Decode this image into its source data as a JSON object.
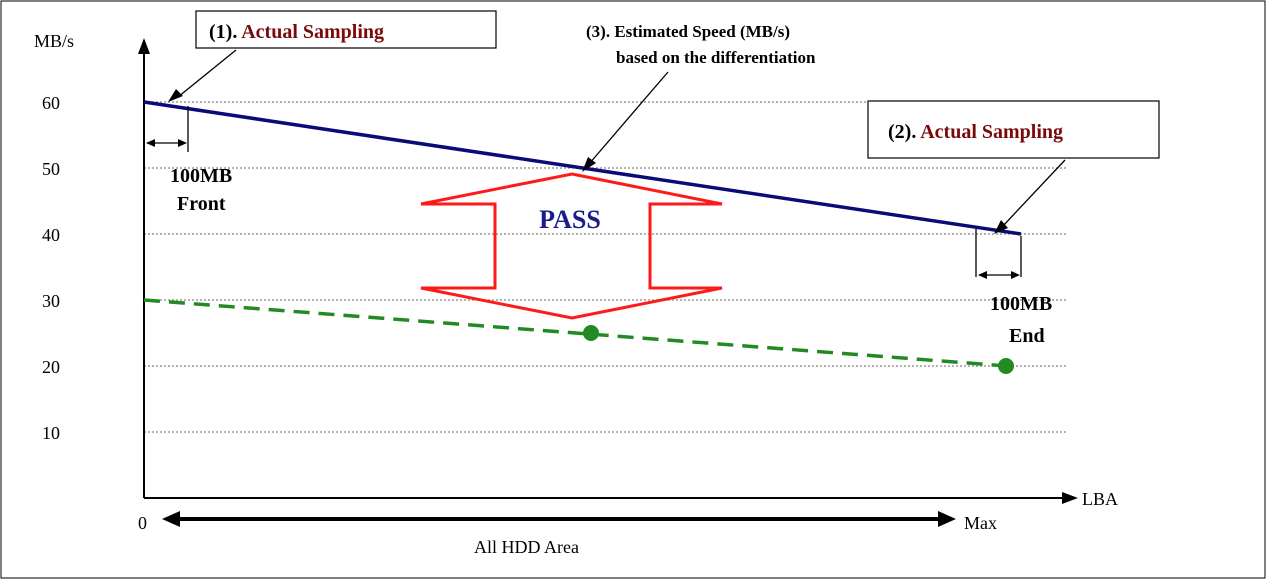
{
  "axes": {
    "y_unit": "MB/s",
    "x_unit": "LBA",
    "x_start": "0",
    "x_end": "Max",
    "y_ticks": [
      "60",
      "50",
      "40",
      "30",
      "20",
      "10"
    ]
  },
  "callouts": {
    "actual_sampling_1": {
      "prefix": "(1). ",
      "text": "Actual Sampling"
    },
    "actual_sampling_2": {
      "prefix": "(2). ",
      "text": "Actual Sampling"
    },
    "estimated_line1": "(3). Estimated Speed (MB/s)",
    "estimated_line2": "based on the differentiation"
  },
  "front_window": {
    "size": "100MB",
    "position": "Front"
  },
  "end_window": {
    "size": "100MB",
    "position": "End"
  },
  "pass_label": "PASS",
  "range_label": "All HDD Area",
  "colors": {
    "estimated_line": "#0a0a78",
    "threshold_line": "#238a23",
    "pass_arrow": "#ff1a1a",
    "pass_text": "#1c1c8c",
    "callout_text": "#7a0a0a"
  },
  "chart_data": {
    "type": "line",
    "xlabel": "LBA",
    "ylabel": "MB/s",
    "ylim": [
      0,
      60
    ],
    "grid": true,
    "series": [
      {
        "values": [
          60,
          40
        ],
        "style": "solid"
      },
      {
        "values": [
          30,
          25,
          20
        ],
        "style": "dashed"
      }
    ]
  }
}
